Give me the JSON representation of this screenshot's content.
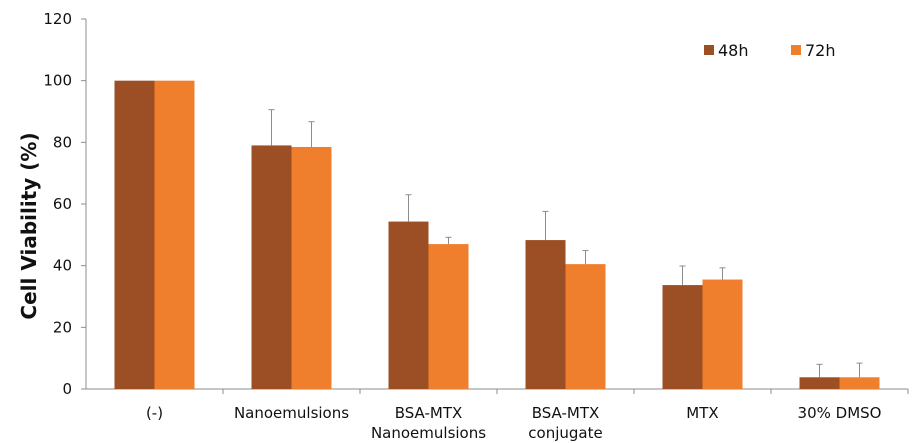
{
  "chart_data": {
    "type": "bar",
    "ylabel": "Cell Viability (%)",
    "ylim": [
      0,
      120
    ],
    "yticks": [
      0,
      20,
      40,
      60,
      80,
      100,
      120
    ],
    "grid": false,
    "legend_position": "top-right",
    "categories": [
      [
        "(-)"
      ],
      [
        "Nanoemulsions"
      ],
      [
        "BSA-MTX",
        "Nanoemulsions"
      ],
      [
        "BSA-MTX",
        "conjugate"
      ],
      [
        "MTX"
      ],
      [
        "30% DMSO"
      ]
    ],
    "series": [
      {
        "name": "48h",
        "color": "#9c4f24",
        "values": [
          100,
          79,
          54.3,
          48.3,
          33.7,
          3.8
        ],
        "errors": [
          0,
          11.6,
          8.7,
          9.3,
          6.2,
          4.2
        ]
      },
      {
        "name": "72h",
        "color": "#f07f2d",
        "values": [
          100,
          78.5,
          47,
          40.5,
          35.5,
          3.8
        ],
        "errors": [
          0,
          8.2,
          2.2,
          4.4,
          3.8,
          4.6
        ]
      }
    ]
  }
}
